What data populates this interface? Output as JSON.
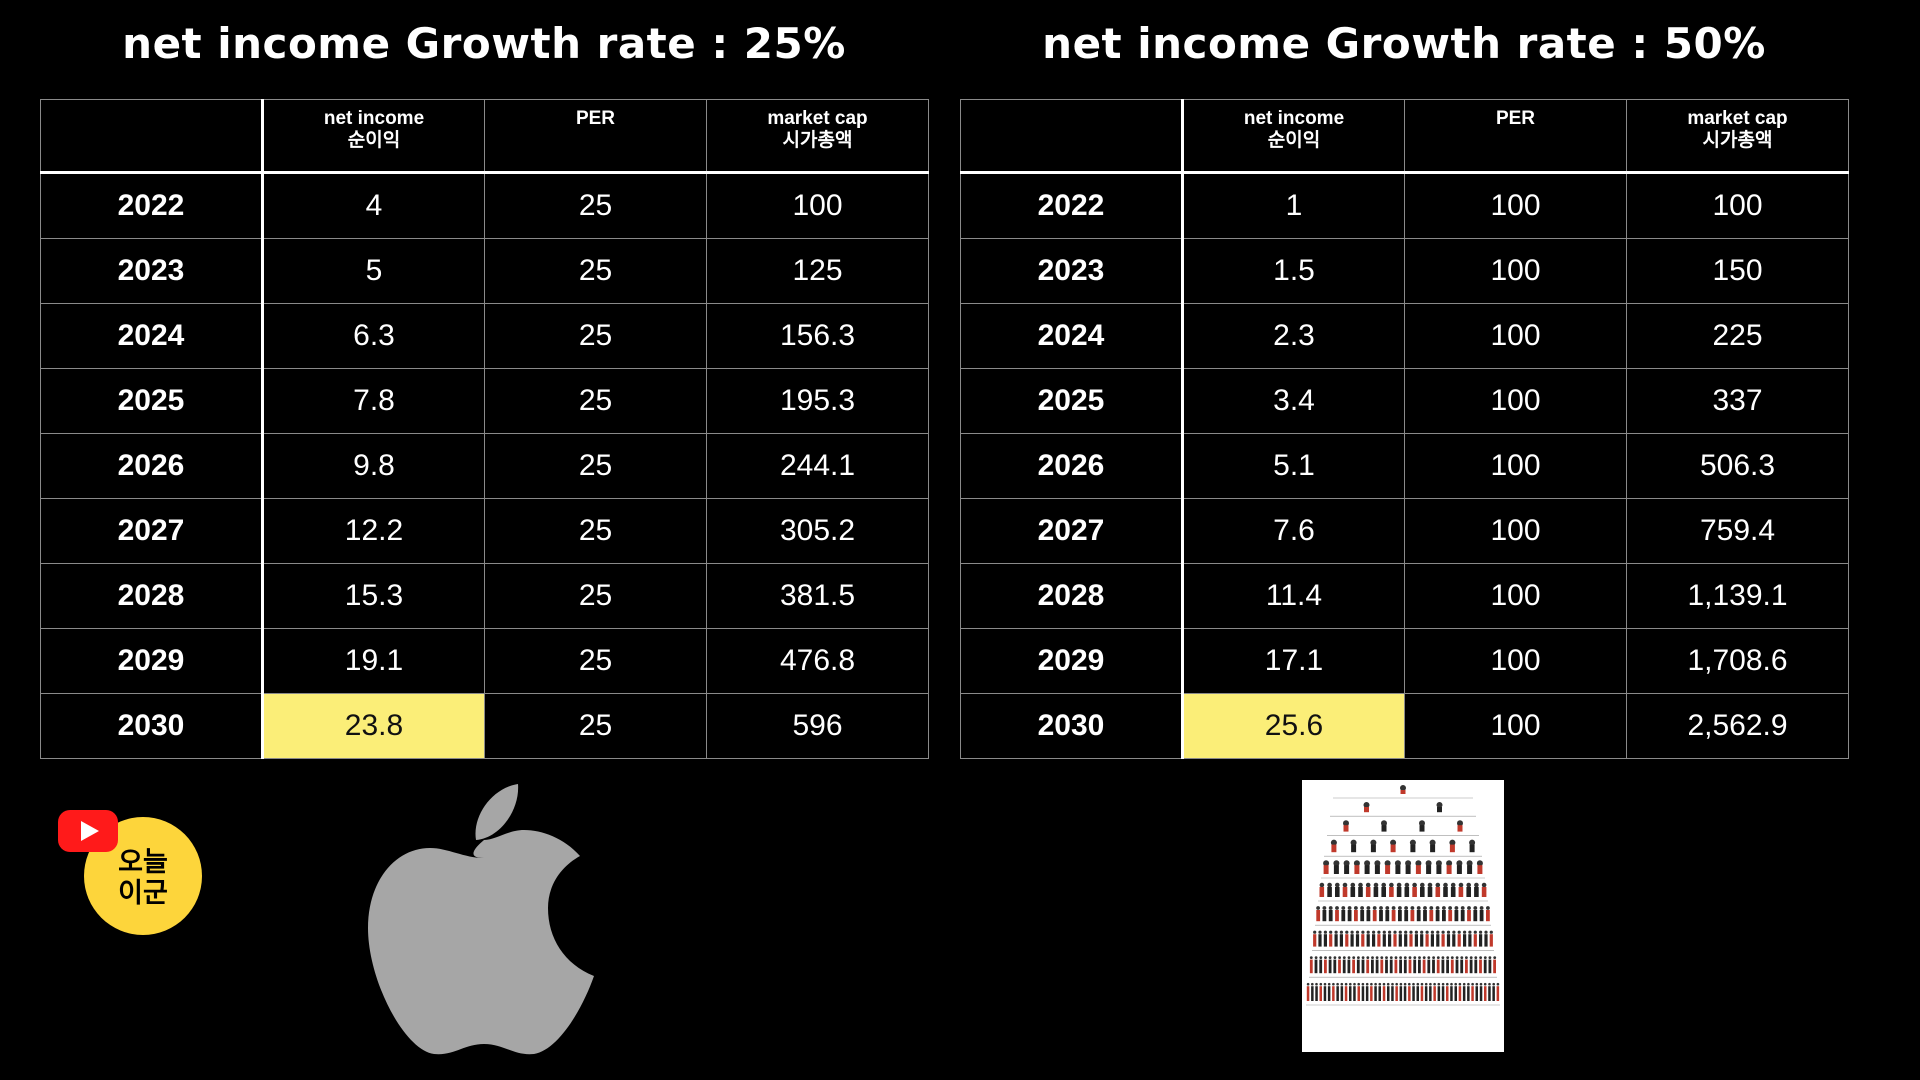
{
  "left": {
    "title": "net income Growth rate : 25%",
    "headers": {
      "year": "",
      "net_income_en": "net income",
      "net_income_ko": "순이익",
      "per": "PER",
      "market_cap_en": "market cap",
      "market_cap_ko": "시가총액"
    },
    "rows": [
      {
        "year": "2022",
        "net_income": "4",
        "per": "25",
        "market_cap": "100"
      },
      {
        "year": "2023",
        "net_income": "5",
        "per": "25",
        "market_cap": "125"
      },
      {
        "year": "2024",
        "net_income": "6.3",
        "per": "25",
        "market_cap": "156.3"
      },
      {
        "year": "2025",
        "net_income": "7.8",
        "per": "25",
        "market_cap": "195.3"
      },
      {
        "year": "2026",
        "net_income": "9.8",
        "per": "25",
        "market_cap": "244.1"
      },
      {
        "year": "2027",
        "net_income": "12.2",
        "per": "25",
        "market_cap": "305.2"
      },
      {
        "year": "2028",
        "net_income": "15.3",
        "per": "25",
        "market_cap": "381.5"
      },
      {
        "year": "2029",
        "net_income": "19.1",
        "per": "25",
        "market_cap": "476.8"
      },
      {
        "year": "2030",
        "net_income": "23.8",
        "per": "25",
        "market_cap": "596"
      }
    ]
  },
  "right": {
    "title": "net income Growth rate : 50%",
    "headers": {
      "year": "",
      "net_income_en": "net income",
      "net_income_ko": "순이익",
      "per": "PER",
      "market_cap_en": "market cap",
      "market_cap_ko": "시가총액"
    },
    "rows": [
      {
        "year": "2022",
        "net_income": "1",
        "per": "100",
        "market_cap": "100"
      },
      {
        "year": "2023",
        "net_income": "1.5",
        "per": "100",
        "market_cap": "150"
      },
      {
        "year": "2024",
        "net_income": "2.3",
        "per": "100",
        "market_cap": "225"
      },
      {
        "year": "2025",
        "net_income": "3.4",
        "per": "100",
        "market_cap": "337"
      },
      {
        "year": "2026",
        "net_income": "5.1",
        "per": "100",
        "market_cap": "506.3"
      },
      {
        "year": "2027",
        "net_income": "7.6",
        "per": "100",
        "market_cap": "759.4"
      },
      {
        "year": "2028",
        "net_income": "11.4",
        "per": "100",
        "market_cap": "1,139.1"
      },
      {
        "year": "2029",
        "net_income": "17.1",
        "per": "100",
        "market_cap": "1,708.6"
      },
      {
        "year": "2030",
        "net_income": "25.6",
        "per": "100",
        "market_cap": "2,562.9"
      }
    ]
  },
  "highlight": {
    "row_year": "2030",
    "column": "net_income",
    "color": "#fbee78"
  },
  "colors": {
    "background": "#000000",
    "text": "#ffffff",
    "grid": "#8a8a8a",
    "badge_yellow": "#fdd53b",
    "youtube_red": "#ff1a1a",
    "apple_gray": "#a6a6a6"
  },
  "badge": {
    "line1": "오늘",
    "line2": "이군",
    "icon": "youtube-play-icon"
  },
  "icons": {
    "apple": "apple-logo-icon",
    "pyramid": "pyramid-hierarchy-image"
  }
}
